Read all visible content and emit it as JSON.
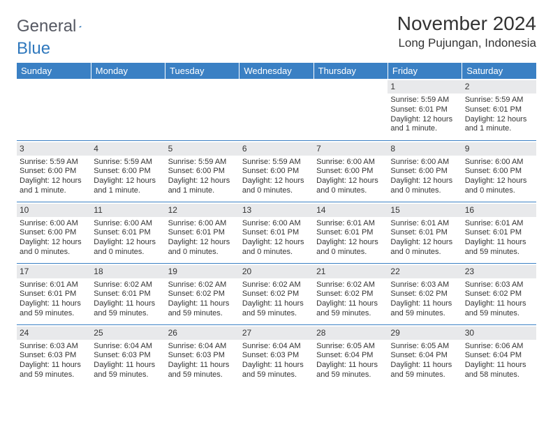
{
  "logo": {
    "word1": "General",
    "word2": "Blue"
  },
  "header": {
    "month": "November 2024",
    "location": "Long Pujungan, Indonesia"
  },
  "columns": [
    "Sunday",
    "Monday",
    "Tuesday",
    "Wednesday",
    "Thursday",
    "Friday",
    "Saturday"
  ],
  "colors": {
    "header_bg": "#3a80c4",
    "header_text": "#ffffff",
    "band_bg": "#e8e9eb",
    "rule": "#3a80c4",
    "text": "#333333",
    "logo_gray": "#555862",
    "logo_blue": "#2f78bd"
  },
  "weeks": [
    [
      {
        "n": "",
        "sr": "",
        "ss": "",
        "dl": ""
      },
      {
        "n": "",
        "sr": "",
        "ss": "",
        "dl": ""
      },
      {
        "n": "",
        "sr": "",
        "ss": "",
        "dl": ""
      },
      {
        "n": "",
        "sr": "",
        "ss": "",
        "dl": ""
      },
      {
        "n": "",
        "sr": "",
        "ss": "",
        "dl": ""
      },
      {
        "n": "1",
        "sr": "Sunrise: 5:59 AM",
        "ss": "Sunset: 6:01 PM",
        "dl": "Daylight: 12 hours and 1 minute."
      },
      {
        "n": "2",
        "sr": "Sunrise: 5:59 AM",
        "ss": "Sunset: 6:01 PM",
        "dl": "Daylight: 12 hours and 1 minute."
      }
    ],
    [
      {
        "n": "3",
        "sr": "Sunrise: 5:59 AM",
        "ss": "Sunset: 6:00 PM",
        "dl": "Daylight: 12 hours and 1 minute."
      },
      {
        "n": "4",
        "sr": "Sunrise: 5:59 AM",
        "ss": "Sunset: 6:00 PM",
        "dl": "Daylight: 12 hours and 1 minute."
      },
      {
        "n": "5",
        "sr": "Sunrise: 5:59 AM",
        "ss": "Sunset: 6:00 PM",
        "dl": "Daylight: 12 hours and 1 minute."
      },
      {
        "n": "6",
        "sr": "Sunrise: 5:59 AM",
        "ss": "Sunset: 6:00 PM",
        "dl": "Daylight: 12 hours and 0 minutes."
      },
      {
        "n": "7",
        "sr": "Sunrise: 6:00 AM",
        "ss": "Sunset: 6:00 PM",
        "dl": "Daylight: 12 hours and 0 minutes."
      },
      {
        "n": "8",
        "sr": "Sunrise: 6:00 AM",
        "ss": "Sunset: 6:00 PM",
        "dl": "Daylight: 12 hours and 0 minutes."
      },
      {
        "n": "9",
        "sr": "Sunrise: 6:00 AM",
        "ss": "Sunset: 6:00 PM",
        "dl": "Daylight: 12 hours and 0 minutes."
      }
    ],
    [
      {
        "n": "10",
        "sr": "Sunrise: 6:00 AM",
        "ss": "Sunset: 6:00 PM",
        "dl": "Daylight: 12 hours and 0 minutes."
      },
      {
        "n": "11",
        "sr": "Sunrise: 6:00 AM",
        "ss": "Sunset: 6:01 PM",
        "dl": "Daylight: 12 hours and 0 minutes."
      },
      {
        "n": "12",
        "sr": "Sunrise: 6:00 AM",
        "ss": "Sunset: 6:01 PM",
        "dl": "Daylight: 12 hours and 0 minutes."
      },
      {
        "n": "13",
        "sr": "Sunrise: 6:00 AM",
        "ss": "Sunset: 6:01 PM",
        "dl": "Daylight: 12 hours and 0 minutes."
      },
      {
        "n": "14",
        "sr": "Sunrise: 6:01 AM",
        "ss": "Sunset: 6:01 PM",
        "dl": "Daylight: 12 hours and 0 minutes."
      },
      {
        "n": "15",
        "sr": "Sunrise: 6:01 AM",
        "ss": "Sunset: 6:01 PM",
        "dl": "Daylight: 12 hours and 0 minutes."
      },
      {
        "n": "16",
        "sr": "Sunrise: 6:01 AM",
        "ss": "Sunset: 6:01 PM",
        "dl": "Daylight: 11 hours and 59 minutes."
      }
    ],
    [
      {
        "n": "17",
        "sr": "Sunrise: 6:01 AM",
        "ss": "Sunset: 6:01 PM",
        "dl": "Daylight: 11 hours and 59 minutes."
      },
      {
        "n": "18",
        "sr": "Sunrise: 6:02 AM",
        "ss": "Sunset: 6:01 PM",
        "dl": "Daylight: 11 hours and 59 minutes."
      },
      {
        "n": "19",
        "sr": "Sunrise: 6:02 AM",
        "ss": "Sunset: 6:02 PM",
        "dl": "Daylight: 11 hours and 59 minutes."
      },
      {
        "n": "20",
        "sr": "Sunrise: 6:02 AM",
        "ss": "Sunset: 6:02 PM",
        "dl": "Daylight: 11 hours and 59 minutes."
      },
      {
        "n": "21",
        "sr": "Sunrise: 6:02 AM",
        "ss": "Sunset: 6:02 PM",
        "dl": "Daylight: 11 hours and 59 minutes."
      },
      {
        "n": "22",
        "sr": "Sunrise: 6:03 AM",
        "ss": "Sunset: 6:02 PM",
        "dl": "Daylight: 11 hours and 59 minutes."
      },
      {
        "n": "23",
        "sr": "Sunrise: 6:03 AM",
        "ss": "Sunset: 6:02 PM",
        "dl": "Daylight: 11 hours and 59 minutes."
      }
    ],
    [
      {
        "n": "24",
        "sr": "Sunrise: 6:03 AM",
        "ss": "Sunset: 6:03 PM",
        "dl": "Daylight: 11 hours and 59 minutes."
      },
      {
        "n": "25",
        "sr": "Sunrise: 6:04 AM",
        "ss": "Sunset: 6:03 PM",
        "dl": "Daylight: 11 hours and 59 minutes."
      },
      {
        "n": "26",
        "sr": "Sunrise: 6:04 AM",
        "ss": "Sunset: 6:03 PM",
        "dl": "Daylight: 11 hours and 59 minutes."
      },
      {
        "n": "27",
        "sr": "Sunrise: 6:04 AM",
        "ss": "Sunset: 6:03 PM",
        "dl": "Daylight: 11 hours and 59 minutes."
      },
      {
        "n": "28",
        "sr": "Sunrise: 6:05 AM",
        "ss": "Sunset: 6:04 PM",
        "dl": "Daylight: 11 hours and 59 minutes."
      },
      {
        "n": "29",
        "sr": "Sunrise: 6:05 AM",
        "ss": "Sunset: 6:04 PM",
        "dl": "Daylight: 11 hours and 59 minutes."
      },
      {
        "n": "30",
        "sr": "Sunrise: 6:06 AM",
        "ss": "Sunset: 6:04 PM",
        "dl": "Daylight: 11 hours and 58 minutes."
      }
    ]
  ]
}
